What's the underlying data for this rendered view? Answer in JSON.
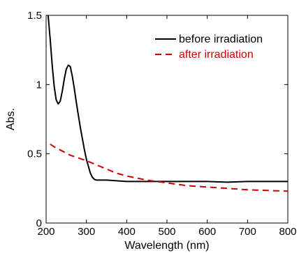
{
  "chart_data": {
    "type": "line",
    "title": "",
    "xlabel": "Wavelength (nm)",
    "ylabel": "Abs.",
    "xlim": [
      200,
      800
    ],
    "ylim": [
      0,
      1.5
    ],
    "x_ticks": [
      200,
      300,
      400,
      500,
      600,
      700,
      800
    ],
    "y_ticks": [
      0,
      0.5,
      1,
      1.5
    ],
    "x_tick_labels": [
      "200",
      "300",
      "400",
      "500",
      "600",
      "700",
      "800"
    ],
    "y_tick_labels": [
      "0",
      "0.5",
      "1",
      "1.5"
    ],
    "grid": false,
    "legend": "top-right",
    "series": [
      {
        "name": "before irradiation",
        "color": "#000000",
        "dash": "solid",
        "x": [
          205,
          210,
          215,
          220,
          225,
          230,
          235,
          240,
          245,
          250,
          255,
          260,
          265,
          270,
          275,
          280,
          285,
          290,
          295,
          300,
          305,
          310,
          315,
          320,
          325,
          330,
          340,
          350,
          375,
          400,
          450,
          500,
          550,
          600,
          650,
          700,
          750,
          800
        ],
        "y": [
          1.5,
          1.33,
          1.14,
          0.99,
          0.89,
          0.86,
          0.88,
          0.95,
          1.04,
          1.11,
          1.14,
          1.13,
          1.06,
          0.97,
          0.87,
          0.78,
          0.69,
          0.61,
          0.53,
          0.46,
          0.41,
          0.36,
          0.33,
          0.315,
          0.31,
          0.31,
          0.31,
          0.31,
          0.305,
          0.3,
          0.3,
          0.3,
          0.3,
          0.3,
          0.295,
          0.3,
          0.3,
          0.3
        ]
      },
      {
        "name": "after irradiation",
        "color": "#cc0000",
        "dash": "dashed",
        "x": [
          210,
          220,
          240,
          260,
          280,
          300,
          325,
          350,
          375,
          400,
          450,
          500,
          550,
          600,
          650,
          700,
          750,
          800
        ],
        "y": [
          0.57,
          0.55,
          0.52,
          0.49,
          0.47,
          0.45,
          0.42,
          0.39,
          0.36,
          0.34,
          0.31,
          0.29,
          0.27,
          0.26,
          0.25,
          0.24,
          0.235,
          0.23
        ]
      }
    ]
  }
}
